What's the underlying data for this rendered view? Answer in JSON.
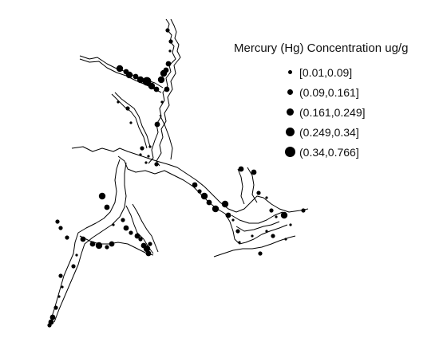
{
  "map": {
    "title": "Mercury (Hg) Concentration ug/g",
    "classes": [
      {
        "label": "[0.01,0.09]",
        "size_class": 1
      },
      {
        "label": "(0.09,0.161]",
        "size_class": 2
      },
      {
        "label": "(0.161,0.249]",
        "size_class": 3
      },
      {
        "label": "(0.249,0.34]",
        "size_class": 4
      },
      {
        "label": "(0.34,0.766]",
        "size_class": 5
      }
    ],
    "colors": {
      "points": "#000000",
      "shoreline": "#000000",
      "background": "#ffffff"
    }
  }
}
